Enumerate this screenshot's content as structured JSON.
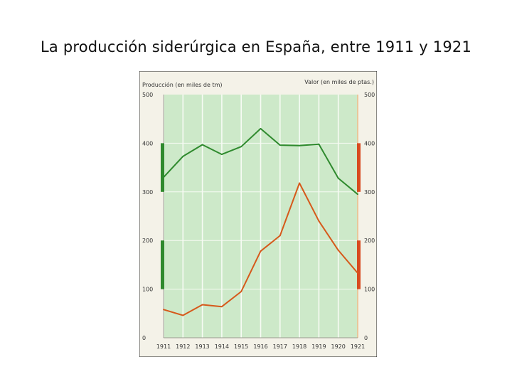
{
  "slide": {
    "title": "La producción siderúrgica en España, entre 1911 y 1921"
  },
  "colors": {
    "plot_background": "#cde9c9",
    "gridline": "#f7fbf4",
    "production_line": "#2f8a2e",
    "value_line": "#d6591b",
    "left_axis_accent": "#2f8a2e",
    "right_axis_accent": "#d84a1f"
  },
  "chart_data": {
    "type": "line",
    "xlabel": "",
    "ylabel_left": "Producción (en miles de tm)",
    "ylabel_right": "Valor (en miles de ptas.)",
    "x": [
      1911,
      1912,
      1913,
      1914,
      1915,
      1916,
      1917,
      1918,
      1919,
      1920,
      1921
    ],
    "x_tick_labels": [
      "1911",
      "1912",
      "1913",
      "1914",
      "1915",
      "1916",
      "1917",
      "1918",
      "1919",
      "1920",
      "1921"
    ],
    "ylim_left": [
      0,
      500
    ],
    "ylim_right": [
      0,
      500
    ],
    "y_ticks_left": [
      "0",
      "100",
      "200",
      "300",
      "400",
      "500"
    ],
    "y_ticks_right": [
      "0",
      "100",
      "200",
      "300",
      "400",
      "500"
    ],
    "grid": true,
    "series": [
      {
        "axis": "left",
        "color": "#2f8a2e",
        "values": [
          330,
          373,
          397,
          377,
          393,
          430,
          396,
          395,
          398,
          328,
          295
        ]
      },
      {
        "axis": "right",
        "color": "#d6591b",
        "values": [
          58,
          46,
          68,
          64,
          95,
          178,
          210,
          318,
          240,
          180,
          133
        ]
      }
    ]
  }
}
